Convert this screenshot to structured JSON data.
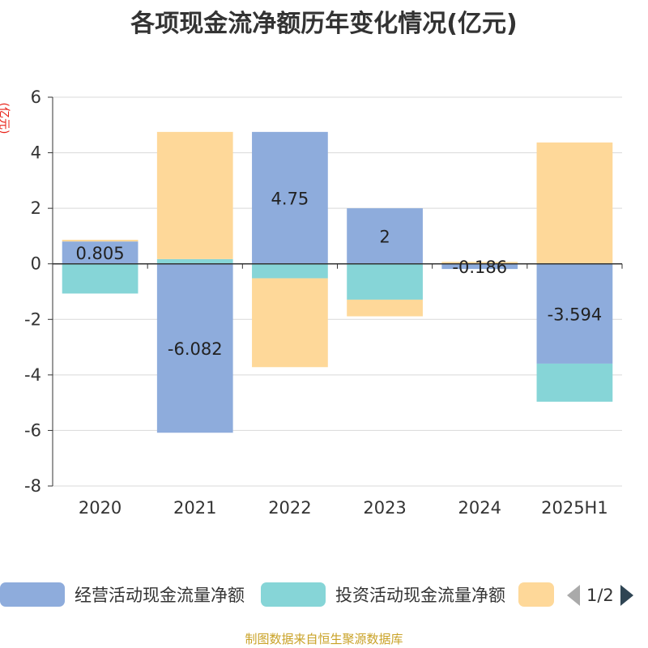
{
  "title": "各项现金流净额历年变化情况(亿元)",
  "unit": "(亿元)",
  "source": "制图数据来自恒生聚源数据库",
  "legend": {
    "items": [
      {
        "label": "经营活动现金流量净额",
        "color": "#8eacdc"
      },
      {
        "label": "投资活动现金流量净额",
        "color": "#86d5d7"
      },
      {
        "label": "",
        "color": "#fed899"
      }
    ],
    "pager": "1/2"
  },
  "chart_data": {
    "type": "bar",
    "stacked": true,
    "categories": [
      "2020",
      "2021",
      "2022",
      "2023",
      "2024",
      "2025H1"
    ],
    "ylim": [
      -8,
      6
    ],
    "yticks": [
      6,
      4,
      2,
      0,
      -2,
      -4,
      -6,
      -8
    ],
    "grid": true,
    "legend_position": "bottom",
    "series": [
      {
        "name": "经营活动现金流量净额",
        "color": "#8eacdc",
        "values": [
          0.805,
          -6.082,
          4.75,
          2,
          -0.186,
          -3.594
        ],
        "labels": [
          "0.805",
          "-6.082",
          "4.75",
          "2",
          "-0.186",
          "-3.594"
        ]
      },
      {
        "name": "投资活动现金流量净额",
        "color": "#86d5d7",
        "values": [
          -1.07,
          0.17,
          -0.52,
          -1.29,
          0.0,
          -1.37
        ]
      },
      {
        "color": "#fed899",
        "values": [
          0.06,
          4.58,
          -3.2,
          -0.6,
          0.07,
          4.37
        ]
      }
    ]
  }
}
